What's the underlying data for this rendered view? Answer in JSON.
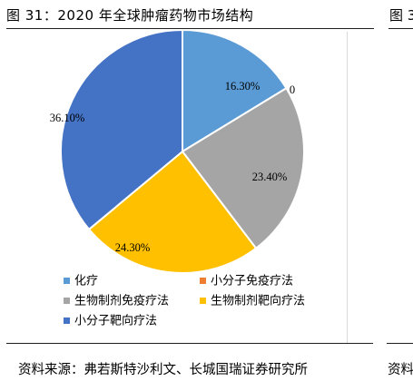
{
  "title": "图 31：2020 年全球肿瘤药物市场结构",
  "title_right_fragment": "图 3",
  "source": "资料来源：弗若斯特沙利文、长城国瑞证券研究所",
  "source_right_fragment": "资料",
  "chart_data": {
    "type": "pie",
    "start_angle": "12 o'clock",
    "direction": "clockwise",
    "legend_position": "bottom-left",
    "slices": [
      {
        "name": "化疗",
        "value": 16.3,
        "label": "16.30%",
        "color": "#5b9bd5"
      },
      {
        "name": "小分子免疫疗法",
        "value": 0,
        "label": "0",
        "color": "#ed7d31"
      },
      {
        "name": "生物制剂免疫疗法",
        "value": 23.4,
        "label": "23.40%",
        "color": "#a5a5a5"
      },
      {
        "name": "生物制剂靶向疗法",
        "value": 24.3,
        "label": "24.30%",
        "color": "#ffc000"
      },
      {
        "name": "小分子靶向疗法",
        "value": 36.1,
        "label": "36.10%",
        "color": "#4472c4"
      }
    ]
  }
}
